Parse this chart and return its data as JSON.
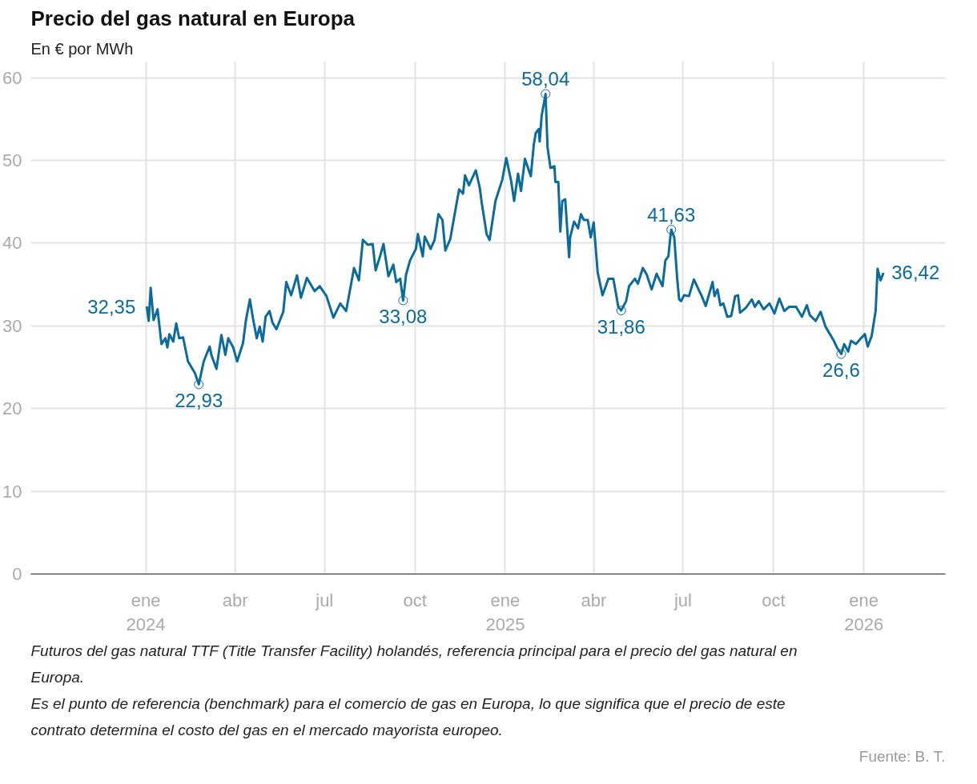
{
  "chart_data": {
    "type": "line",
    "title": "Precio del gas natural en Europa",
    "subtitle": "En € por MWh",
    "x": [
      "2024-01-02",
      "2024-01-04",
      "2024-01-06",
      "2024-01-09",
      "2024-01-13",
      "2024-01-17",
      "2024-01-21",
      "2024-01-23",
      "2024-01-25",
      "2024-01-29",
      "2024-02-01",
      "2024-02-04",
      "2024-02-08",
      "2024-02-13",
      "2024-02-20",
      "2024-02-24",
      "2024-02-29",
      "2024-03-06",
      "2024-03-08",
      "2024-03-13",
      "2024-03-18",
      "2024-03-22",
      "2024-03-25",
      "2024-03-30",
      "2024-04-03",
      "2024-04-09",
      "2024-04-12",
      "2024-04-16",
      "2024-04-19",
      "2024-04-23",
      "2024-04-26",
      "2024-04-29",
      "2024-05-02",
      "2024-05-06",
      "2024-05-09",
      "2024-05-13",
      "2024-05-20",
      "2024-05-23",
      "2024-05-28",
      "2024-06-03",
      "2024-06-07",
      "2024-06-13",
      "2024-06-21",
      "2024-06-26",
      "2024-07-03",
      "2024-07-10",
      "2024-07-17",
      "2024-07-23",
      "2024-07-31",
      "2024-08-05",
      "2024-08-09",
      "2024-08-14",
      "2024-08-19",
      "2024-08-22",
      "2024-08-27",
      "2024-08-30",
      "2024-09-04",
      "2024-09-09",
      "2024-09-12",
      "2024-09-16",
      "2024-09-19",
      "2024-09-22",
      "2024-09-26",
      "2024-10-02",
      "2024-10-04",
      "2024-10-09",
      "2024-10-11",
      "2024-10-17",
      "2024-10-21",
      "2024-10-25",
      "2024-10-29",
      "2024-11-01",
      "2024-11-06",
      "2024-11-10",
      "2024-11-15",
      "2024-11-19",
      "2024-11-21",
      "2024-11-25",
      "2024-12-02",
      "2024-12-06",
      "2024-12-08",
      "2024-12-13",
      "2024-12-16",
      "2024-12-20",
      "2024-12-22",
      "2024-12-29",
      "2025-01-02",
      "2025-01-07",
      "2025-01-10",
      "2025-01-14",
      "2025-01-17",
      "2025-01-21",
      "2025-01-27",
      "2025-01-30",
      "2025-02-01",
      "2025-02-04",
      "2025-02-05",
      "2025-02-07",
      "2025-02-11",
      "2025-02-13",
      "2025-02-16",
      "2025-02-20",
      "2025-02-21",
      "2025-02-24",
      "2025-02-26",
      "2025-02-28",
      "2025-03-03",
      "2025-03-07",
      "2025-03-08",
      "2025-03-12",
      "2025-03-16",
      "2025-03-19",
      "2025-03-22",
      "2025-03-26",
      "2025-03-29",
      "2025-04-01",
      "2025-04-05",
      "2025-04-10",
      "2025-04-16",
      "2025-04-21",
      "2025-04-24",
      "2025-04-26",
      "2025-04-29",
      "2025-05-04",
      "2025-05-07",
      "2025-05-13",
      "2025-05-16",
      "2025-05-21",
      "2025-05-25",
      "2025-05-30",
      "2025-06-04",
      "2025-06-10",
      "2025-06-13",
      "2025-06-16",
      "2025-06-18",
      "2025-06-19",
      "2025-06-22",
      "2025-06-25",
      "2025-06-27",
      "2025-06-29",
      "2025-07-02",
      "2025-07-07",
      "2025-07-12",
      "2025-07-16",
      "2025-07-20",
      "2025-07-24",
      "2025-07-31",
      "2025-08-02",
      "2025-08-05",
      "2025-08-08",
      "2025-08-11",
      "2025-08-15",
      "2025-08-19",
      "2025-08-23",
      "2025-08-26",
      "2025-08-28",
      "2025-09-03",
      "2025-09-09",
      "2025-09-12",
      "2025-09-16",
      "2025-09-21",
      "2025-09-27",
      "2025-10-02",
      "2025-10-07",
      "2025-10-12",
      "2025-10-17",
      "2025-10-24",
      "2025-10-30",
      "2025-11-04",
      "2025-11-07",
      "2025-11-13",
      "2025-11-18",
      "2025-11-23",
      "2025-12-01",
      "2025-12-05",
      "2025-12-09",
      "2025-12-12",
      "2025-12-16",
      "2025-12-19",
      "2025-12-24",
      "2025-12-29",
      "2026-01-02",
      "2026-01-05",
      "2026-01-09",
      "2026-01-13",
      "2026-01-15",
      "2026-01-18",
      "2026-01-21"
    ],
    "series": [
      {
        "color": "#0b6b9c",
        "values": [
          32.35,
          30.6,
          34.6,
          30.7,
          32.0,
          27.8,
          28.5,
          27.4,
          29.0,
          28.1,
          30.3,
          28.5,
          28.6,
          25.7,
          24.3,
          22.93,
          25.7,
          27.5,
          26.4,
          24.8,
          28.9,
          26.5,
          28.5,
          27.4,
          25.7,
          27.9,
          30.7,
          33.2,
          31.0,
          28.5,
          29.9,
          28.1,
          31.1,
          31.8,
          30.4,
          29.6,
          31.7,
          35.3,
          33.7,
          36.1,
          33.4,
          35.8,
          34.2,
          34.8,
          33.6,
          31.0,
          32.7,
          31.8,
          37.0,
          35.5,
          40.4,
          39.8,
          39.9,
          36.7,
          38.6,
          39.9,
          36.0,
          37.4,
          35.3,
          35.7,
          33.08,
          36.2,
          37.9,
          39.3,
          41.1,
          38.4,
          40.8,
          39.3,
          40.4,
          43.5,
          42.8,
          39.1,
          40.5,
          43.2,
          46.5,
          46.0,
          48.2,
          47.0,
          48.8,
          46.7,
          44.9,
          41.1,
          40.4,
          43.5,
          45.1,
          47.7,
          50.3,
          47.5,
          45.1,
          48.4,
          46.3,
          50.2,
          48.1,
          51.9,
          53.3,
          53.8,
          52.3,
          55.4,
          58.04,
          51.6,
          49.1,
          49.3,
          47.4,
          47.4,
          41.4,
          45.1,
          45.3,
          38.3,
          40.7,
          42.6,
          41.8,
          43.5,
          42.8,
          42.8,
          40.7,
          42.5,
          36.5,
          33.7,
          35.7,
          35.7,
          33.7,
          32.3,
          31.86,
          33.0,
          34.8,
          35.7,
          35.1,
          37.0,
          36.2,
          34.4,
          36.3,
          34.8,
          37.9,
          38.4,
          40.7,
          41.63,
          40.7,
          35.7,
          33.2,
          33.0,
          33.7,
          33.6,
          35.6,
          34.6,
          33.6,
          32.4,
          35.3,
          33.6,
          34.4,
          32.5,
          32.7,
          31.1,
          31.2,
          33.6,
          33.7,
          31.6,
          32.2,
          33.2,
          32.3,
          33.0,
          32.0,
          32.7,
          31.5,
          33.3,
          31.8,
          32.3,
          32.3,
          31.1,
          32.5,
          31.3,
          30.6,
          31.7,
          29.9,
          28.3,
          27.3,
          26.6,
          27.8,
          26.9,
          28.2,
          27.8,
          28.5,
          29.0,
          27.5,
          28.8,
          31.8,
          36.9,
          35.5,
          36.42
        ]
      }
    ],
    "xlim": [
      "2023-09-06",
      "2026-03-25"
    ],
    "xticks": [
      {
        "value": "2024-01-01",
        "label": "ene\n2024"
      },
      {
        "value": "2024-04-01",
        "label": "abr"
      },
      {
        "value": "2024-07-01",
        "label": "jul"
      },
      {
        "value": "2024-10-01",
        "label": "oct"
      },
      {
        "value": "2025-01-01",
        "label": "ene\n2025"
      },
      {
        "value": "2025-04-01",
        "label": "abr"
      },
      {
        "value": "2025-07-01",
        "label": "jul"
      },
      {
        "value": "2025-10-01",
        "label": "oct"
      },
      {
        "value": "2026-01-01",
        "label": "ene\n2026"
      }
    ],
    "ylim": [
      0,
      62
    ],
    "yticks": [
      0,
      10,
      20,
      30,
      40,
      50,
      60
    ],
    "grid": true,
    "marker": "none",
    "line_style": "solid",
    "annotations": [
      {
        "text": "32,35",
        "x": "2024-01-02",
        "y": 32.35
      },
      {
        "text": "22,93",
        "x": "2024-02-24",
        "y": 22.93
      },
      {
        "text": "33,08",
        "x": "2024-09-19",
        "y": 33.08
      },
      {
        "text": "58,04",
        "x": "2025-02-11",
        "y": 58.04
      },
      {
        "text": "31,86",
        "x": "2025-04-29",
        "y": 31.86
      },
      {
        "text": "41,63",
        "x": "2025-06-19",
        "y": 41.63
      },
      {
        "text": "26,6",
        "x": "2025-12-09",
        "y": 26.6
      },
      {
        "text": "36,42",
        "x": "2026-01-21",
        "y": 36.42
      },
      "Futuros del gas natural TTF (Title Transfer Facility) holandés, referencia principal para el precio del gas natural en Europa.",
      "Es el punto de referencia (benchmark) para el comercio de gas en Europa, lo que significa que el precio de este contrato determina el costo del gas en el mercado mayorista europeo.",
      "Fuente: B. T."
    ]
  }
}
